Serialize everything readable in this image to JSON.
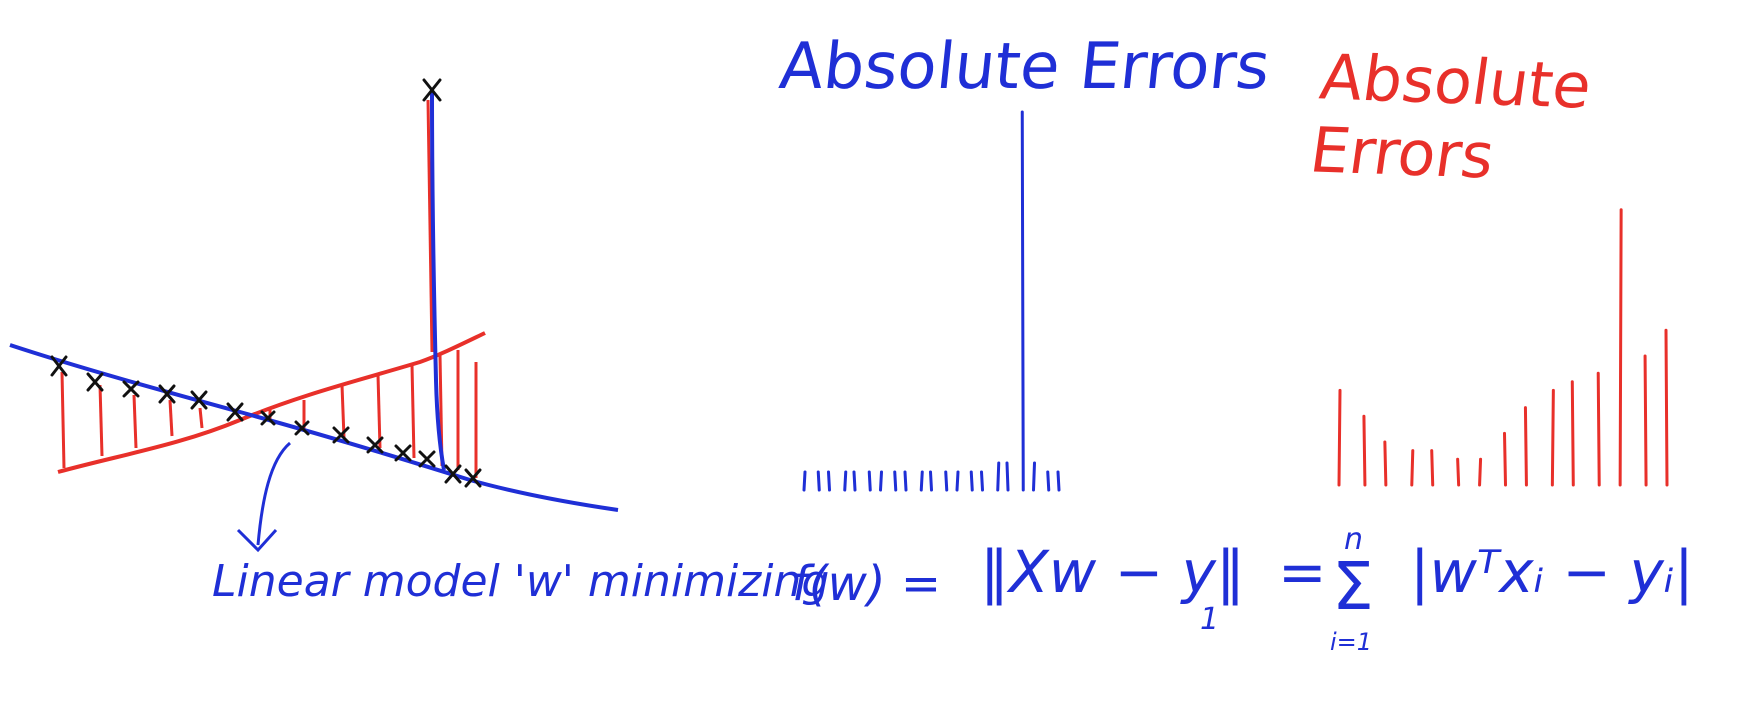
{
  "colors": {
    "blue": "#1f2fd6",
    "red": "#e8302a",
    "black": "#111111"
  },
  "titles": {
    "blue": "Absolute Errors",
    "red": "Absolute Errors"
  },
  "equation": {
    "caption": "Linear model 'w' minimizing",
    "lhs": "f(w) =",
    "norm": "‖Xw − y‖",
    "norm_sub": "1",
    "equals": "=",
    "sum_symbol": "Σ",
    "sum_upper": "n",
    "sum_lower": "i=1",
    "summand": "|wᵀxᵢ − yᵢ|"
  },
  "diagram": {
    "blue_errors": [
      2,
      2,
      2,
      2,
      2,
      2,
      2,
      2,
      2,
      2,
      2,
      2,
      2,
      2,
      2,
      3,
      3,
      42,
      3,
      2,
      2
    ],
    "red_errors": [
      11,
      8,
      5,
      4,
      4,
      3,
      3,
      6,
      9,
      11,
      12,
      13,
      32,
      15,
      18
    ]
  }
}
